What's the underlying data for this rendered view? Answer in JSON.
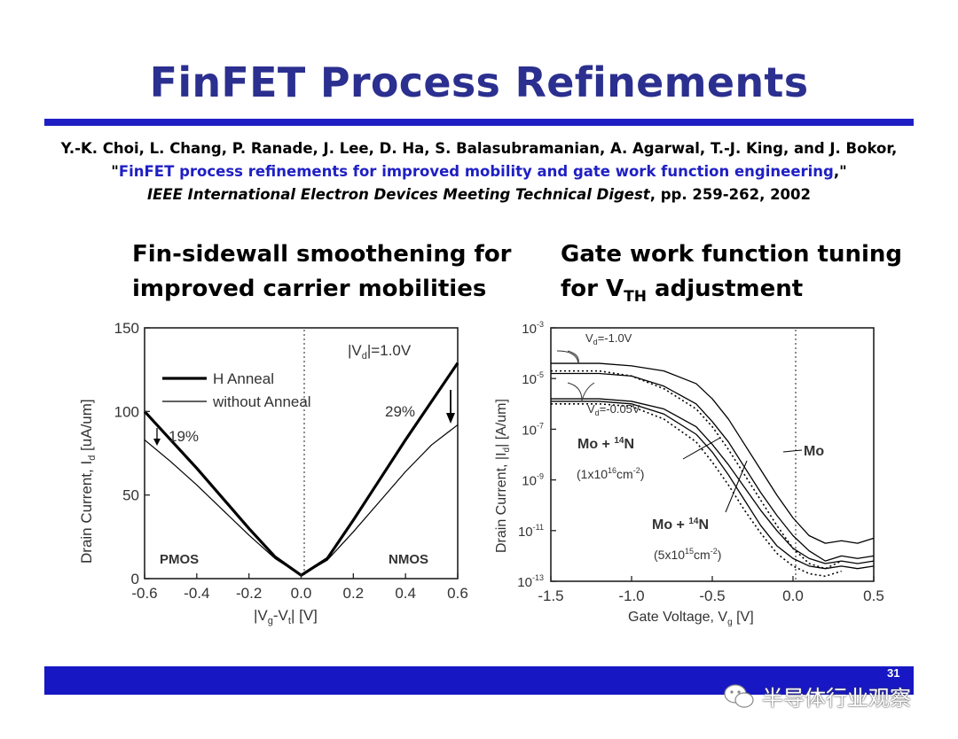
{
  "slide": {
    "title": "FinFET Process Refinements",
    "page_number": "31",
    "citation": {
      "authors": "Y.-K. Choi, L. Chang, P. Ranade, J. Lee, D. Ha, S. Balasubramanian, A. Agarwal, T.-J. King, and J. Bokor,",
      "quote_open": "\"",
      "paper_title": "FinFET process refinements for improved mobility and gate work function engineering",
      "quote_close": ",\"",
      "journal": "IEEE International Electron Devices Meeting Technical Digest",
      "pages": ", pp. 259-262, 2002"
    },
    "left_heading": {
      "line1": "Fin-sidewall smoothening for",
      "line2": "improved carrier mobilities"
    },
    "right_heading": {
      "line1": "Gate work function tuning",
      "line2_prefix": "for V",
      "line2_sub": "TH",
      "line2_suffix": " adjustment"
    },
    "watermark": {
      "text": "半导体行业观察"
    },
    "colors": {
      "title": "#2b2f8f",
      "rule": "#1f1fc4",
      "bottom_bar": "#1717c4",
      "link": "#1f1fc4"
    }
  },
  "chart_data": [
    {
      "type": "line",
      "xlim": [
        -0.6,
        0.6
      ],
      "ylim": [
        0,
        150
      ],
      "x_ticks": [
        "-0.6",
        "-0.4",
        "-0.2",
        "0.0",
        "0.2",
        "0.4",
        "0.6"
      ],
      "y_ticks": [
        "0",
        "50",
        "100",
        "150"
      ],
      "xlabel_parts": [
        "|V",
        "g",
        "-V",
        "t",
        "| [V]"
      ],
      "ylabel_parts": [
        "Drain Current, I",
        "d",
        " [uA/um]"
      ],
      "legend": [
        "H Anneal",
        "without Anneal"
      ],
      "annotations": {
        "vd_prefix": "|V",
        "vd_sub": "d",
        "vd_suffix": "|=1.0V",
        "left_pct": "19%",
        "right_pct": "29%",
        "left_device": "PMOS",
        "right_device": "NMOS"
      },
      "series": [
        {
          "name": "H Anneal",
          "x": [
            -0.6,
            -0.5,
            -0.4,
            -0.3,
            -0.2,
            -0.1,
            0.0,
            0.1,
            0.2,
            0.3,
            0.4,
            0.5,
            0.6
          ],
          "values": [
            100,
            83,
            66,
            48,
            30,
            13,
            2,
            12,
            35,
            59,
            83,
            106,
            129
          ]
        },
        {
          "name": "without Anneal",
          "x": [
            -0.6,
            -0.5,
            -0.4,
            -0.3,
            -0.2,
            -0.1,
            0.0,
            0.1,
            0.2,
            0.3,
            0.4,
            0.5,
            0.6
          ],
          "values": [
            83,
            70,
            56,
            41,
            26,
            12,
            2,
            11,
            28,
            46,
            64,
            80,
            92
          ]
        }
      ]
    },
    {
      "type": "line",
      "yscale": "log",
      "xlim": [
        -1.5,
        0.5
      ],
      "ylim_exp": [
        -13,
        -3
      ],
      "x_ticks": [
        "-1.5",
        "-1.0",
        "-0.5",
        "0.0",
        "0.5"
      ],
      "y_ticks_exp": [
        "-3",
        "-5",
        "-7",
        "-9",
        "-11",
        "-13"
      ],
      "xlabel_parts": [
        "Gate Voltage, V",
        "g",
        " [V]"
      ],
      "ylabel_parts": [
        "Drain Current, |I",
        "d",
        "| [A/um]"
      ],
      "annotations": {
        "vd_high_prefix": "V",
        "vd_high_sub": "d",
        "vd_high_suffix": "=-1.0V",
        "vd_low_prefix": "V",
        "vd_low_sub": "d",
        "vd_low_suffix": "=-0.05V",
        "mo": "Mo",
        "mo_n_prefix": "Mo + ",
        "mo_n_sup": "14",
        "mo_n_suffix": "N",
        "dose1_prefix": "(1x10",
        "dose1_sup": "16",
        "dose1_mid": "cm",
        "dose1_sup2": "-2",
        "dose1_suffix": ")",
        "dose2_prefix": "(5x10",
        "dose2_sup": "15",
        "dose2_mid": "cm",
        "dose2_sup2": "-2",
        "dose2_suffix": ")"
      },
      "series": [
        {
          "x": [
            -1.5,
            -1.2,
            -1.0,
            -0.8,
            -0.6,
            -0.5,
            -0.4,
            -0.3,
            -0.2,
            -0.1,
            0.0,
            0.1,
            0.2,
            0.3,
            0.4,
            0.5
          ],
          "log10_values": [
            -4.4,
            -4.4,
            -4.5,
            -4.7,
            -5.2,
            -5.8,
            -6.6,
            -7.6,
            -8.6,
            -9.6,
            -10.5,
            -11.2,
            -11.5,
            -11.4,
            -11.5,
            -11.3
          ]
        },
        {
          "x": [
            -1.5,
            -1.2,
            -1.0,
            -0.8,
            -0.6,
            -0.5,
            -0.4,
            -0.3,
            -0.2,
            -0.1,
            0.0,
            0.1,
            0.2,
            0.3,
            0.4,
            0.5
          ],
          "log10_values": [
            -4.8,
            -4.8,
            -4.9,
            -5.3,
            -6.0,
            -6.7,
            -7.5,
            -8.5,
            -9.5,
            -10.4,
            -11.2,
            -11.8,
            -12.2,
            -12.0,
            -12.1,
            -12.0
          ]
        },
        {
          "x": [
            -1.5,
            -1.2,
            -1.0,
            -0.8,
            -0.6,
            -0.5,
            -0.4,
            -0.3,
            -0.2,
            -0.1,
            0.0,
            0.1,
            0.2,
            0.3,
            0.4,
            0.5
          ],
          "log10_values": [
            -5.8,
            -5.8,
            -5.9,
            -6.2,
            -6.9,
            -7.6,
            -8.4,
            -9.3,
            -10.2,
            -11.0,
            -11.7,
            -12.1,
            -12.3,
            -12.2,
            -12.3,
            -12.2
          ]
        },
        {
          "x": [
            -1.5,
            -1.2,
            -1.0,
            -0.8,
            -0.6,
            -0.5,
            -0.4,
            -0.3,
            -0.2,
            -0.1,
            0.0,
            0.1,
            0.2,
            0.3,
            0.4,
            0.5
          ],
          "log10_values": [
            -5.9,
            -5.9,
            -6.0,
            -6.4,
            -7.2,
            -7.9,
            -8.8,
            -9.8,
            -10.8,
            -11.6,
            -12.1,
            -12.4,
            -12.5,
            -12.4,
            -12.5,
            -12.4
          ]
        },
        {
          "x": [
            -1.5,
            -1.2,
            -1.0,
            -0.8,
            -0.6,
            -0.5,
            -0.4,
            -0.3,
            -0.2,
            -0.1,
            0.0,
            0.1,
            0.2,
            0.3
          ],
          "log10_values": [
            -4.7,
            -4.7,
            -4.9,
            -5.4,
            -6.2,
            -6.9,
            -7.8,
            -8.8,
            -9.8,
            -10.8,
            -11.7,
            -12.3,
            -12.5,
            -12.2
          ],
          "dashed": true
        },
        {
          "x": [
            -1.5,
            -1.2,
            -1.0,
            -0.8,
            -0.6,
            -0.5,
            -0.4,
            -0.3,
            -0.2,
            -0.1,
            0.0,
            0.1,
            0.2,
            0.3
          ],
          "log10_values": [
            -6.0,
            -6.0,
            -6.1,
            -6.6,
            -7.5,
            -8.3,
            -9.2,
            -10.2,
            -11.1,
            -11.9,
            -12.4,
            -12.7,
            -12.8,
            -12.6
          ],
          "dashed": true
        }
      ]
    }
  ]
}
